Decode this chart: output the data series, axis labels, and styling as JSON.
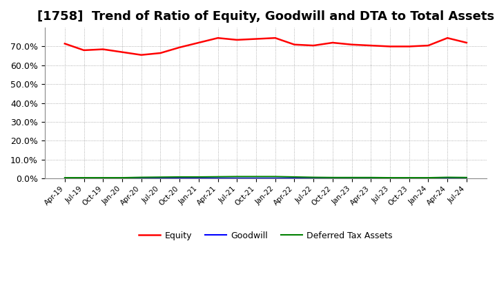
{
  "title": "[1758]  Trend of Ratio of Equity, Goodwill and DTA to Total Assets",
  "x_labels": [
    "Apr-19",
    "Jul-19",
    "Oct-19",
    "Jan-20",
    "Apr-20",
    "Jul-20",
    "Oct-20",
    "Jan-21",
    "Apr-21",
    "Jul-21",
    "Oct-21",
    "Jan-22",
    "Apr-22",
    "Jul-22",
    "Oct-22",
    "Jan-23",
    "Apr-23",
    "Jul-23",
    "Oct-23",
    "Jan-24",
    "Apr-24",
    "Jul-24"
  ],
  "equity": [
    71.5,
    68.0,
    68.5,
    67.0,
    65.5,
    66.5,
    69.5,
    72.0,
    74.5,
    73.5,
    74.0,
    74.5,
    71.0,
    70.5,
    72.0,
    71.0,
    70.5,
    70.0,
    70.0,
    70.5,
    74.5,
    72.0
  ],
  "goodwill": [
    0.0,
    0.0,
    0.0,
    0.0,
    0.0,
    0.0,
    0.0,
    0.0,
    0.0,
    0.0,
    0.0,
    0.0,
    0.0,
    0.0,
    0.0,
    0.0,
    0.0,
    0.0,
    0.0,
    0.0,
    0.0,
    0.0
  ],
  "dta": [
    0.3,
    0.3,
    0.3,
    0.3,
    0.5,
    0.6,
    0.7,
    0.7,
    0.8,
    0.9,
    0.9,
    0.9,
    0.7,
    0.5,
    0.4,
    0.4,
    0.4,
    0.3,
    0.3,
    0.3,
    0.5,
    0.4
  ],
  "equity_color": "#ff0000",
  "goodwill_color": "#0000ff",
  "dta_color": "#008000",
  "ylim": [
    0,
    80
  ],
  "yticks": [
    0,
    10,
    20,
    30,
    40,
    50,
    60,
    70
  ],
  "ytick_labels": [
    "0.0%",
    "10.0%",
    "20.0%",
    "30.0%",
    "40.0%",
    "50.0%",
    "60.0%",
    "70.0%"
  ],
  "background_color": "#ffffff",
  "plot_bg_color": "#ffffff",
  "grid_color": "#999999",
  "title_fontsize": 13,
  "legend_labels": [
    "Equity",
    "Goodwill",
    "Deferred Tax Assets"
  ]
}
